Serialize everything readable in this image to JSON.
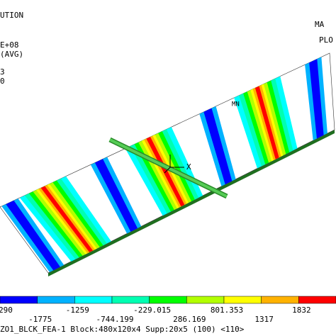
{
  "header_left": [
    "UTION",
    "E+08",
    "(AVG)",
    "3",
    "0"
  ],
  "header_right": [
    "MA",
    "PLO"
  ],
  "plot": {
    "min_marker": "MN",
    "axis_label": "X"
  },
  "legend": {
    "labels": [
      "290",
      "-1775",
      "-1259",
      "-744.199",
      "-229.015",
      "286.169",
      "801.353",
      "1317",
      "1832"
    ]
  },
  "footer": "ZO1_BLCK_FEA-1 Block:480x120x4 Supp:20x5 (100) <110>"
}
